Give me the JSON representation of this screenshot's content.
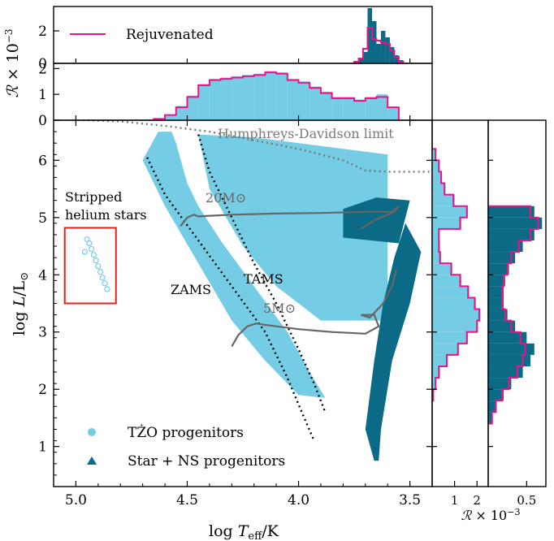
{
  "chart_data": {
    "type": "scatter",
    "main": {
      "xlabel": "log T_eff/K",
      "ylabel": "log L/L⊙",
      "xlim": [
        5.1,
        3.4
      ],
      "ylim": [
        0.3,
        6.7
      ],
      "x_ticks": [
        5.0,
        4.5,
        4.0,
        3.5
      ],
      "y_ticks": [
        1,
        2,
        3,
        4,
        5,
        6
      ],
      "legend": {
        "placement": "lower-left",
        "entries": [
          "TŻO progenitors",
          "Star + NS progenitors"
        ]
      },
      "annotations": {
        "hd_limit": "Humphreys-Davidson limit",
        "stripped_line1": "Stripped",
        "stripped_line2": "helium stars",
        "zams": "ZAMS",
        "tams": "TAMS",
        "track_20": "20M⊙",
        "track_5": "5M⊙"
      },
      "tzo_region": [
        [
          4.57,
          6.5
        ],
        [
          4.55,
          6.3
        ],
        [
          4.5,
          5.6
        ],
        [
          4.45,
          5.2
        ],
        [
          4.35,
          4.6
        ],
        [
          4.2,
          3.8
        ],
        [
          4.05,
          3.0
        ],
        [
          3.95,
          2.3
        ],
        [
          3.88,
          1.85
        ],
        [
          4.0,
          1.9
        ],
        [
          4.15,
          2.5
        ],
        [
          4.3,
          3.2
        ],
        [
          4.45,
          4.2
        ],
        [
          4.6,
          5.2
        ],
        [
          4.7,
          6.0
        ],
        [
          4.63,
          6.5
        ]
      ],
      "tzo_region_2": [
        [
          3.9,
          3.2
        ],
        [
          3.6,
          3.2
        ],
        [
          3.6,
          6.1
        ],
        [
          4.2,
          6.4
        ],
        [
          4.45,
          6.45
        ],
        [
          4.4,
          5.5
        ],
        [
          4.25,
          4.5
        ],
        [
          4.1,
          3.8
        ]
      ],
      "starns_region": [
        [
          3.66,
          0.75
        ],
        [
          3.7,
          1.3
        ],
        [
          3.66,
          2.5
        ],
        [
          3.62,
          3.5
        ],
        [
          3.57,
          4.3
        ],
        [
          3.52,
          4.9
        ],
        [
          3.45,
          4.4
        ],
        [
          3.5,
          3.5
        ],
        [
          3.58,
          2.5
        ],
        [
          3.63,
          1.3
        ],
        [
          3.64,
          0.75
        ]
      ],
      "starns_cloud": [
        [
          3.8,
          5.15
        ],
        [
          3.8,
          4.65
        ],
        [
          3.55,
          4.55
        ],
        [
          3.5,
          5.3
        ],
        [
          3.65,
          5.35
        ]
      ],
      "stripped_points": [
        [
          4.95,
          4.62
        ],
        [
          4.93,
          4.45
        ],
        [
          4.92,
          4.35
        ],
        [
          4.91,
          4.25
        ],
        [
          4.9,
          4.15
        ],
        [
          4.89,
          4.05
        ],
        [
          4.88,
          3.95
        ],
        [
          4.87,
          3.85
        ],
        [
          4.86,
          3.75
        ],
        [
          4.94,
          4.55
        ],
        [
          4.96,
          4.4
        ]
      ],
      "stripped_box": {
        "x0": 5.05,
        "x1": 4.82,
        "y0": 3.5,
        "y1": 4.82
      },
      "zams_line": [
        [
          4.68,
          6.05
        ],
        [
          4.6,
          5.4
        ],
        [
          4.45,
          4.6
        ],
        [
          4.3,
          3.8
        ],
        [
          4.15,
          3.0
        ],
        [
          4.05,
          2.2
        ],
        [
          3.98,
          1.55
        ],
        [
          3.93,
          1.1
        ]
      ],
      "tams_line": [
        [
          4.45,
          6.45
        ],
        [
          4.4,
          5.8
        ],
        [
          4.3,
          5.0
        ],
        [
          4.2,
          4.2
        ],
        [
          4.1,
          3.5
        ],
        [
          4.0,
          2.7
        ],
        [
          3.93,
          2.1
        ],
        [
          3.88,
          1.6
        ]
      ],
      "hd_line": [
        [
          5.1,
          6.72
        ],
        [
          4.8,
          6.68
        ],
        [
          4.6,
          6.6
        ],
        [
          4.4,
          6.5
        ],
        [
          4.2,
          6.35
        ],
        [
          4.0,
          6.2
        ],
        [
          3.8,
          6.0
        ],
        [
          3.7,
          5.82
        ],
        [
          3.6,
          5.8
        ],
        [
          3.4,
          5.8
        ]
      ],
      "track_20": [
        [
          4.53,
          4.85
        ],
        [
          4.5,
          5.0
        ],
        [
          4.47,
          5.05
        ],
        [
          4.45,
          5.02
        ],
        [
          4.3,
          5.05
        ],
        [
          4.1,
          5.07
        ],
        [
          3.9,
          5.08
        ],
        [
          3.7,
          5.1
        ],
        [
          3.58,
          5.1
        ],
        [
          3.55,
          5.2
        ],
        [
          3.57,
          5.1
        ],
        [
          3.6,
          5.05
        ],
        [
          3.66,
          4.95
        ],
        [
          3.72,
          4.8
        ]
      ],
      "track_5": [
        [
          4.3,
          2.75
        ],
        [
          4.27,
          2.95
        ],
        [
          4.23,
          3.1
        ],
        [
          4.19,
          3.15
        ],
        [
          4.14,
          3.12
        ],
        [
          4.0,
          3.05
        ],
        [
          3.85,
          3.0
        ],
        [
          3.7,
          2.97
        ],
        [
          3.64,
          3.1
        ],
        [
          3.66,
          3.3
        ],
        [
          3.72,
          3.3
        ],
        [
          3.68,
          3.25
        ],
        [
          3.62,
          3.5
        ],
        [
          3.58,
          3.8
        ],
        [
          3.56,
          4.1
        ]
      ]
    },
    "top_panel": {
      "ylabel": "R × 10⁻³",
      "ylim": [
        0,
        2.2
      ],
      "y_ticks": [
        0,
        1,
        2
      ],
      "x_bin_edges": [
        4.65,
        4.6,
        4.55,
        4.5,
        4.45,
        4.4,
        4.35,
        4.3,
        4.25,
        4.2,
        4.15,
        4.1,
        4.05,
        4.0,
        3.95,
        3.9,
        3.85,
        3.8,
        3.75,
        3.7,
        3.65,
        3.6,
        3.55
      ],
      "tzo_hist": [
        0.05,
        0.2,
        0.55,
        0.95,
        1.4,
        1.6,
        1.65,
        1.7,
        1.75,
        1.8,
        1.9,
        1.85,
        1.6,
        1.5,
        1.3,
        1.1,
        0.9,
        0.9,
        0.8,
        0.9,
        1.0,
        0.5
      ],
      "rejuvenated_hist": [
        0.05,
        0.2,
        0.5,
        0.9,
        1.35,
        1.55,
        1.6,
        1.65,
        1.7,
        1.75,
        1.85,
        1.8,
        1.55,
        1.45,
        1.25,
        1.05,
        0.85,
        0.85,
        0.75,
        0.85,
        0.9,
        0.5
      ]
    },
    "top_panel_2": {
      "ylabel": "",
      "ylim": [
        0,
        3.5
      ],
      "y_ticks": [
        0,
        2
      ],
      "x_bin_edges": [
        3.75,
        3.73,
        3.71,
        3.69,
        3.67,
        3.65,
        3.63,
        3.61,
        3.59,
        3.57,
        3.55,
        3.53
      ],
      "starns_hist": [
        0.1,
        0.3,
        0.7,
        3.4,
        2.6,
        1.2,
        2.0,
        1.6,
        1.0,
        0.5,
        0.2
      ],
      "rejuvenated_hist": [
        0.1,
        0.3,
        0.9,
        2.2,
        1.5,
        1.4,
        1.3,
        1.2,
        0.8,
        0.4,
        0.1
      ],
      "legend": {
        "placement": "top-left",
        "entries": [
          "Rejuvenated"
        ]
      }
    },
    "right_panel": {
      "xlabel": "R × 10⁻³",
      "tzo": {
        "xlim": [
          0,
          2.5
        ],
        "x_ticks": [
          1,
          2
        ],
        "y_bin_edges": [
          1.8,
          2.0,
          2.2,
          2.4,
          2.6,
          2.8,
          3.0,
          3.2,
          3.4,
          3.6,
          3.8,
          4.0,
          4.2,
          4.4,
          4.6,
          4.8,
          5.0,
          5.2,
          5.4,
          5.6,
          5.8,
          6.0,
          6.2
        ],
        "values": [
          0.05,
          0.15,
          0.35,
          0.7,
          1.2,
          1.6,
          2.05,
          2.15,
          1.95,
          1.65,
          1.3,
          0.9,
          0.4,
          0.35,
          0.3,
          1.3,
          1.6,
          1.0,
          0.6,
          0.45,
          0.3,
          0.15
        ],
        "rejuvenated": [
          0.05,
          0.15,
          0.3,
          0.65,
          1.15,
          1.55,
          2.0,
          2.1,
          1.9,
          1.6,
          1.25,
          0.85,
          0.35,
          0.3,
          0.3,
          1.25,
          1.55,
          0.95,
          0.55,
          0.4,
          0.3,
          0.15
        ]
      },
      "starns": {
        "xlim": [
          0,
          0.75
        ],
        "x_ticks": [
          0.5
        ],
        "y_bin_edges": [
          1.4,
          1.6,
          1.8,
          2.0,
          2.2,
          2.4,
          2.6,
          2.8,
          3.0,
          3.2,
          3.4,
          3.6,
          3.8,
          4.0,
          4.2,
          4.4,
          4.6,
          4.8,
          5.0,
          5.2
        ],
        "values": [
          0.05,
          0.1,
          0.2,
          0.3,
          0.45,
          0.55,
          0.6,
          0.5,
          0.35,
          0.25,
          0.2,
          0.2,
          0.22,
          0.27,
          0.35,
          0.45,
          0.6,
          0.7,
          0.6
        ],
        "rejuvenated": [
          0.05,
          0.1,
          0.18,
          0.27,
          0.38,
          0.45,
          0.48,
          0.42,
          0.3,
          0.22,
          0.18,
          0.18,
          0.2,
          0.25,
          0.3,
          0.4,
          0.55,
          0.65,
          0.55
        ]
      }
    }
  },
  "colors": {
    "tzo": "#74cde4",
    "starns": "#0b6a85",
    "rejuvenated": "#e9148c",
    "box": "#e32119",
    "track": "#666666",
    "hd": "#777777"
  }
}
